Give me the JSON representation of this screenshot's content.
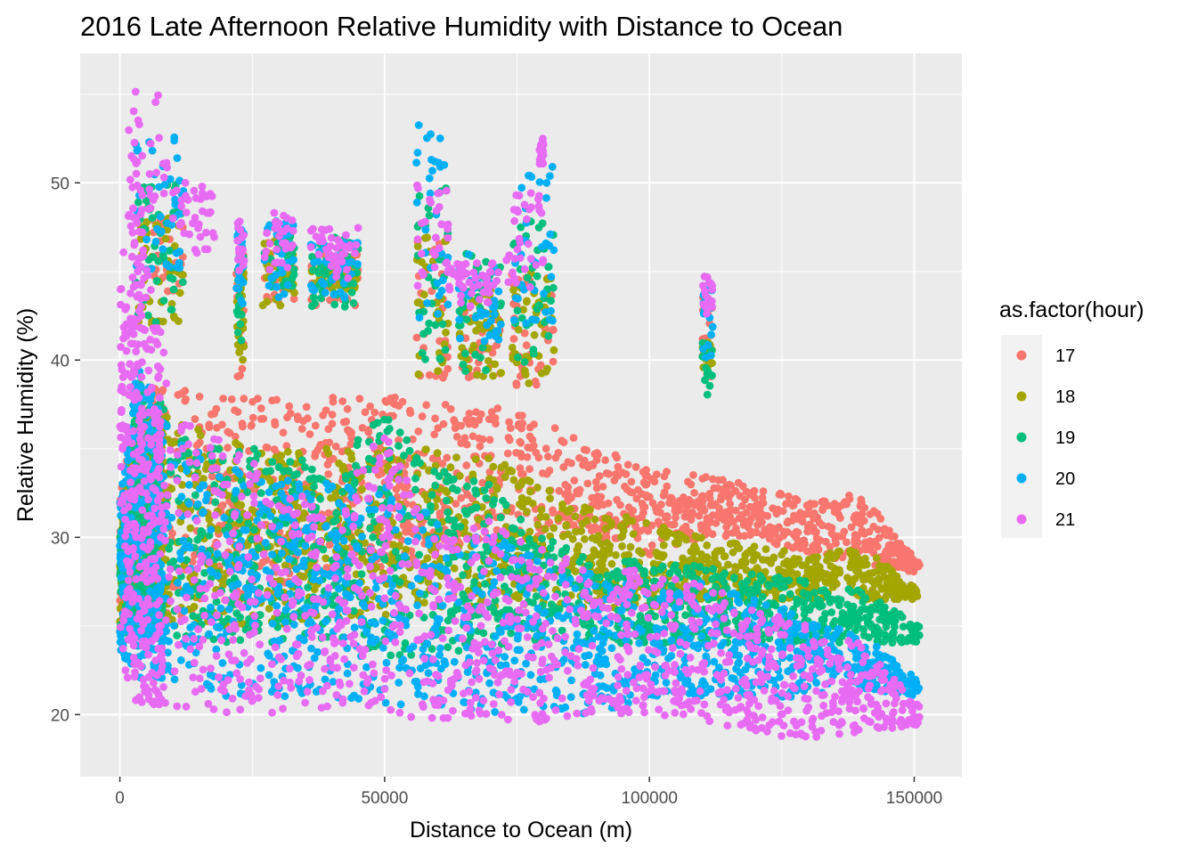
{
  "chart_data": {
    "type": "scatter",
    "title": "2016 Late Afternoon Relative Humidity with Distance to Ocean",
    "xlabel": "Distance to Ocean (m)",
    "ylabel": "Relative Humidity (%)",
    "xlim": [
      -7500,
      159000
    ],
    "ylim": [
      16.5,
      57.3
    ],
    "x_ticks": [
      0,
      50000,
      100000,
      150000
    ],
    "x_tick_labels": [
      "0",
      "50000",
      "100000",
      "150000"
    ],
    "y_ticks": [
      20,
      30,
      40,
      50
    ],
    "y_tick_labels": [
      "20",
      "30",
      "40",
      "50"
    ],
    "grid": true,
    "legend": {
      "title": "as.factor(hour)",
      "position": "right"
    },
    "series": [
      {
        "name": "17",
        "color": "#F8766D",
        "band": [
          [
            0,
            24.5,
            32
          ],
          [
            3000,
            25,
            38.5
          ],
          [
            10000,
            25.5,
            38.5
          ],
          [
            20000,
            26,
            38
          ],
          [
            30000,
            27,
            38
          ],
          [
            40000,
            28,
            38
          ],
          [
            50000,
            28,
            38
          ],
          [
            60000,
            29,
            37.5
          ],
          [
            70000,
            30,
            37.5
          ],
          [
            80000,
            30,
            36.5
          ],
          [
            90000,
            30,
            35
          ],
          [
            100000,
            29,
            34
          ],
          [
            110000,
            30,
            33.5
          ],
          [
            120000,
            30,
            33
          ],
          [
            130000,
            29,
            32
          ],
          [
            140000,
            28.5,
            32.5
          ],
          [
            151000,
            28,
            28.5
          ]
        ],
        "clusters": [
          [
            6000,
            12000,
            43,
            48
          ],
          [
            22000,
            23500,
            39,
            47
          ],
          [
            27000,
            33000,
            43,
            47
          ],
          [
            36000,
            45000,
            43,
            46
          ],
          [
            56000,
            62000,
            39,
            47
          ],
          [
            64000,
            72000,
            39,
            43
          ],
          [
            74000,
            82000,
            38.5,
            45
          ],
          [
            110000,
            112000,
            39,
            44
          ]
        ]
      },
      {
        "name": "18",
        "color": "#A3A500",
        "band": [
          [
            0,
            24.5,
            30
          ],
          [
            3000,
            25,
            37.5
          ],
          [
            10000,
            25,
            37
          ],
          [
            20000,
            25,
            35.5
          ],
          [
            30000,
            25,
            35
          ],
          [
            40000,
            25.5,
            35
          ],
          [
            50000,
            25.5,
            35
          ],
          [
            60000,
            26,
            35
          ],
          [
            70000,
            26,
            34.5
          ],
          [
            80000,
            26,
            33
          ],
          [
            90000,
            26,
            31.5
          ],
          [
            100000,
            26,
            31
          ],
          [
            110000,
            26.5,
            30
          ],
          [
            120000,
            26.5,
            29.5
          ],
          [
            130000,
            26.5,
            29
          ],
          [
            140000,
            26.5,
            29.5
          ],
          [
            151000,
            26.5,
            27
          ]
        ],
        "clusters": [
          [
            3000,
            12000,
            42,
            48
          ],
          [
            22000,
            23500,
            40,
            45
          ],
          [
            27000,
            33000,
            43,
            47
          ],
          [
            36000,
            45000,
            44,
            46
          ],
          [
            56000,
            62000,
            39,
            47
          ],
          [
            64000,
            72000,
            39,
            44
          ],
          [
            74000,
            82000,
            38.5,
            45
          ],
          [
            110000,
            112000,
            39.5,
            41
          ]
        ]
      },
      {
        "name": "19",
        "color": "#00BF7D",
        "band": [
          [
            0,
            24.5,
            30
          ],
          [
            3000,
            24.5,
            39
          ],
          [
            10000,
            24.5,
            37
          ],
          [
            20000,
            24,
            35
          ],
          [
            30000,
            24,
            35
          ],
          [
            40000,
            24,
            34
          ],
          [
            50000,
            23,
            37
          ],
          [
            60000,
            23.5,
            34
          ],
          [
            70000,
            23.5,
            33
          ],
          [
            80000,
            24,
            30
          ],
          [
            90000,
            24,
            29
          ],
          [
            100000,
            24,
            28.5
          ],
          [
            110000,
            24,
            28.5
          ],
          [
            120000,
            24,
            28
          ],
          [
            130000,
            24,
            27.5
          ],
          [
            140000,
            24,
            27
          ],
          [
            151000,
            24,
            25
          ]
        ],
        "clusters": [
          [
            3000,
            12000,
            42,
            50
          ],
          [
            22000,
            23500,
            41,
            46
          ],
          [
            27000,
            33000,
            44,
            47
          ],
          [
            36000,
            45000,
            43,
            47
          ],
          [
            56000,
            62000,
            40,
            50
          ],
          [
            64000,
            72000,
            39,
            46
          ],
          [
            74000,
            82000,
            39,
            48
          ],
          [
            110000,
            112000,
            38,
            41
          ]
        ]
      },
      {
        "name": "20",
        "color": "#00B0F6",
        "band": [
          [
            0,
            23.5,
            32
          ],
          [
            3000,
            22,
            40
          ],
          [
            10000,
            22,
            36
          ],
          [
            20000,
            21,
            34
          ],
          [
            30000,
            21,
            33.5
          ],
          [
            40000,
            21,
            33
          ],
          [
            50000,
            20.5,
            33
          ],
          [
            60000,
            20.5,
            31
          ],
          [
            70000,
            20,
            30
          ],
          [
            80000,
            20,
            29
          ],
          [
            90000,
            20,
            28
          ],
          [
            100000,
            21,
            27
          ],
          [
            110000,
            21,
            27.5
          ],
          [
            120000,
            21,
            26.5
          ],
          [
            130000,
            21,
            25.5
          ],
          [
            140000,
            21.5,
            24.5
          ],
          [
            151000,
            21,
            22
          ]
        ],
        "clusters": [
          [
            3000,
            12000,
            45,
            53
          ],
          [
            22000,
            23500,
            43,
            48
          ],
          [
            27000,
            33000,
            43.5,
            48
          ],
          [
            36000,
            45000,
            43.5,
            47
          ],
          [
            56000,
            62000,
            42,
            53.5
          ],
          [
            64000,
            72000,
            41,
            46
          ],
          [
            74000,
            82000,
            42,
            51
          ],
          [
            110000,
            112000,
            40,
            44
          ]
        ]
      },
      {
        "name": "21",
        "color": "#E76BF3",
        "band": [
          [
            0,
            23,
            45
          ],
          [
            3000,
            20.5,
            51
          ],
          [
            6000,
            20.5,
            44
          ],
          [
            10000,
            20.5,
            38.5
          ],
          [
            20000,
            20,
            35.5
          ],
          [
            30000,
            20,
            33
          ],
          [
            40000,
            20,
            32
          ],
          [
            50000,
            20,
            36
          ],
          [
            60000,
            19.5,
            30
          ],
          [
            70000,
            19.5,
            31
          ],
          [
            80000,
            19.5,
            29.5
          ],
          [
            90000,
            20,
            28.5
          ],
          [
            100000,
            20,
            28
          ],
          [
            110000,
            19.5,
            27.5
          ],
          [
            120000,
            19,
            26
          ],
          [
            130000,
            18.5,
            25
          ],
          [
            140000,
            19,
            24
          ],
          [
            151000,
            19.3,
            20.5
          ]
        ],
        "clusters": [
          [
            1500,
            9000,
            48,
            55.3
          ],
          [
            10000,
            18000,
            46,
            50
          ],
          [
            22000,
            23500,
            45,
            48
          ],
          [
            27000,
            33000,
            45,
            48.5
          ],
          [
            36000,
            45000,
            44.5,
            47.5
          ],
          [
            56000,
            62000,
            44,
            50.5
          ],
          [
            62000,
            72000,
            43,
            45.5
          ],
          [
            73000,
            80000,
            44,
            49.5
          ],
          [
            79000,
            80000,
            51,
            52.5
          ],
          [
            110000,
            112000,
            42.5,
            45
          ]
        ]
      }
    ]
  }
}
